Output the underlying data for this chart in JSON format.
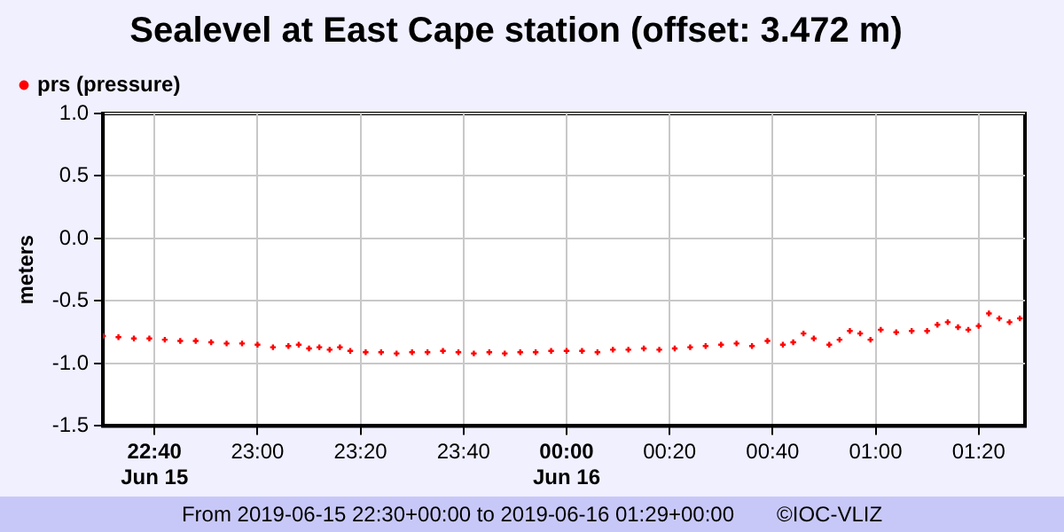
{
  "chart_data": {
    "type": "scatter",
    "title": "Sealevel at East Cape station (offset: 3.472 m)",
    "ylabel": "meters",
    "x": [
      "2019-06-15T22:30",
      "2019-06-15T22:33",
      "2019-06-15T22:36",
      "2019-06-15T22:39",
      "2019-06-15T22:42",
      "2019-06-15T22:45",
      "2019-06-15T22:48",
      "2019-06-15T22:51",
      "2019-06-15T22:54",
      "2019-06-15T22:57",
      "2019-06-15T23:00",
      "2019-06-15T23:03",
      "2019-06-15T23:06",
      "2019-06-15T23:08",
      "2019-06-15T23:10",
      "2019-06-15T23:12",
      "2019-06-15T23:14",
      "2019-06-15T23:16",
      "2019-06-15T23:18",
      "2019-06-15T23:21",
      "2019-06-15T23:24",
      "2019-06-15T23:27",
      "2019-06-15T23:30",
      "2019-06-15T23:33",
      "2019-06-15T23:36",
      "2019-06-15T23:39",
      "2019-06-15T23:42",
      "2019-06-15T23:45",
      "2019-06-15T23:48",
      "2019-06-15T23:51",
      "2019-06-15T23:54",
      "2019-06-15T23:57",
      "2019-06-16T00:00",
      "2019-06-16T00:03",
      "2019-06-16T00:06",
      "2019-06-16T00:09",
      "2019-06-16T00:12",
      "2019-06-16T00:15",
      "2019-06-16T00:18",
      "2019-06-16T00:21",
      "2019-06-16T00:24",
      "2019-06-16T00:27",
      "2019-06-16T00:30",
      "2019-06-16T00:33",
      "2019-06-16T00:36",
      "2019-06-16T00:39",
      "2019-06-16T00:42",
      "2019-06-16T00:44",
      "2019-06-16T00:46",
      "2019-06-16T00:48",
      "2019-06-16T00:51",
      "2019-06-16T00:53",
      "2019-06-16T00:55",
      "2019-06-16T00:57",
      "2019-06-16T00:59",
      "2019-06-16T01:01",
      "2019-06-16T01:04",
      "2019-06-16T01:07",
      "2019-06-16T01:10",
      "2019-06-16T01:12",
      "2019-06-16T01:14",
      "2019-06-16T01:16",
      "2019-06-16T01:18",
      "2019-06-16T01:20",
      "2019-06-16T01:22",
      "2019-06-16T01:24",
      "2019-06-16T01:26",
      "2019-06-16T01:28"
    ],
    "series": [
      {
        "name": "prs (pressure)",
        "color": "#ff0000",
        "values": [
          -0.78,
          -0.79,
          -0.8,
          -0.8,
          -0.81,
          -0.82,
          -0.82,
          -0.83,
          -0.84,
          -0.84,
          -0.85,
          -0.87,
          -0.86,
          -0.85,
          -0.88,
          -0.87,
          -0.89,
          -0.87,
          -0.9,
          -0.91,
          -0.91,
          -0.92,
          -0.91,
          -0.91,
          -0.9,
          -0.91,
          -0.92,
          -0.91,
          -0.92,
          -0.91,
          -0.91,
          -0.9,
          -0.9,
          -0.9,
          -0.91,
          -0.89,
          -0.89,
          -0.88,
          -0.89,
          -0.88,
          -0.87,
          -0.86,
          -0.85,
          -0.84,
          -0.86,
          -0.82,
          -0.85,
          -0.83,
          -0.76,
          -0.8,
          -0.85,
          -0.81,
          -0.74,
          -0.76,
          -0.81,
          -0.73,
          -0.75,
          -0.74,
          -0.74,
          -0.69,
          -0.67,
          -0.71,
          -0.73,
          -0.7,
          -0.6,
          -0.64,
          -0.67,
          -0.64
        ]
      }
    ],
    "xlim": [
      "2019-06-15T22:30",
      "2019-06-16T01:29"
    ],
    "xticks": [
      {
        "value": "2019-06-15T22:40",
        "label": "22:40\nJun 15"
      },
      {
        "value": "2019-06-15T23:00",
        "label": "23:00"
      },
      {
        "value": "2019-06-15T23:20",
        "label": "23:20"
      },
      {
        "value": "2019-06-15T23:40",
        "label": "23:40"
      },
      {
        "value": "2019-06-16T00:00",
        "label": "00:00\nJun 16"
      },
      {
        "value": "2019-06-16T00:20",
        "label": "00:20"
      },
      {
        "value": "2019-06-16T00:40",
        "label": "00:40"
      },
      {
        "value": "2019-06-16T01:00",
        "label": "01:00"
      },
      {
        "value": "2019-06-16T01:20",
        "label": "01:20"
      }
    ],
    "ylim": [
      -1.5,
      1
    ],
    "yticks": [
      {
        "value": -1.5,
        "label": "-1.5"
      },
      {
        "value": -1,
        "label": "-1.0"
      },
      {
        "value": -0.5,
        "label": "-0.5"
      },
      {
        "value": 0,
        "label": "0.0"
      },
      {
        "value": 0.5,
        "label": "0.5"
      },
      {
        "value": 1,
        "label": "1.0"
      }
    ],
    "grid": true,
    "legend": "top left",
    "marker": "cross",
    "annotations": [
      "From 2019-06-15 22:30+00:00 to 2019-06-16 01:29+00:00",
      "©IOC-VLIZ"
    ]
  }
}
